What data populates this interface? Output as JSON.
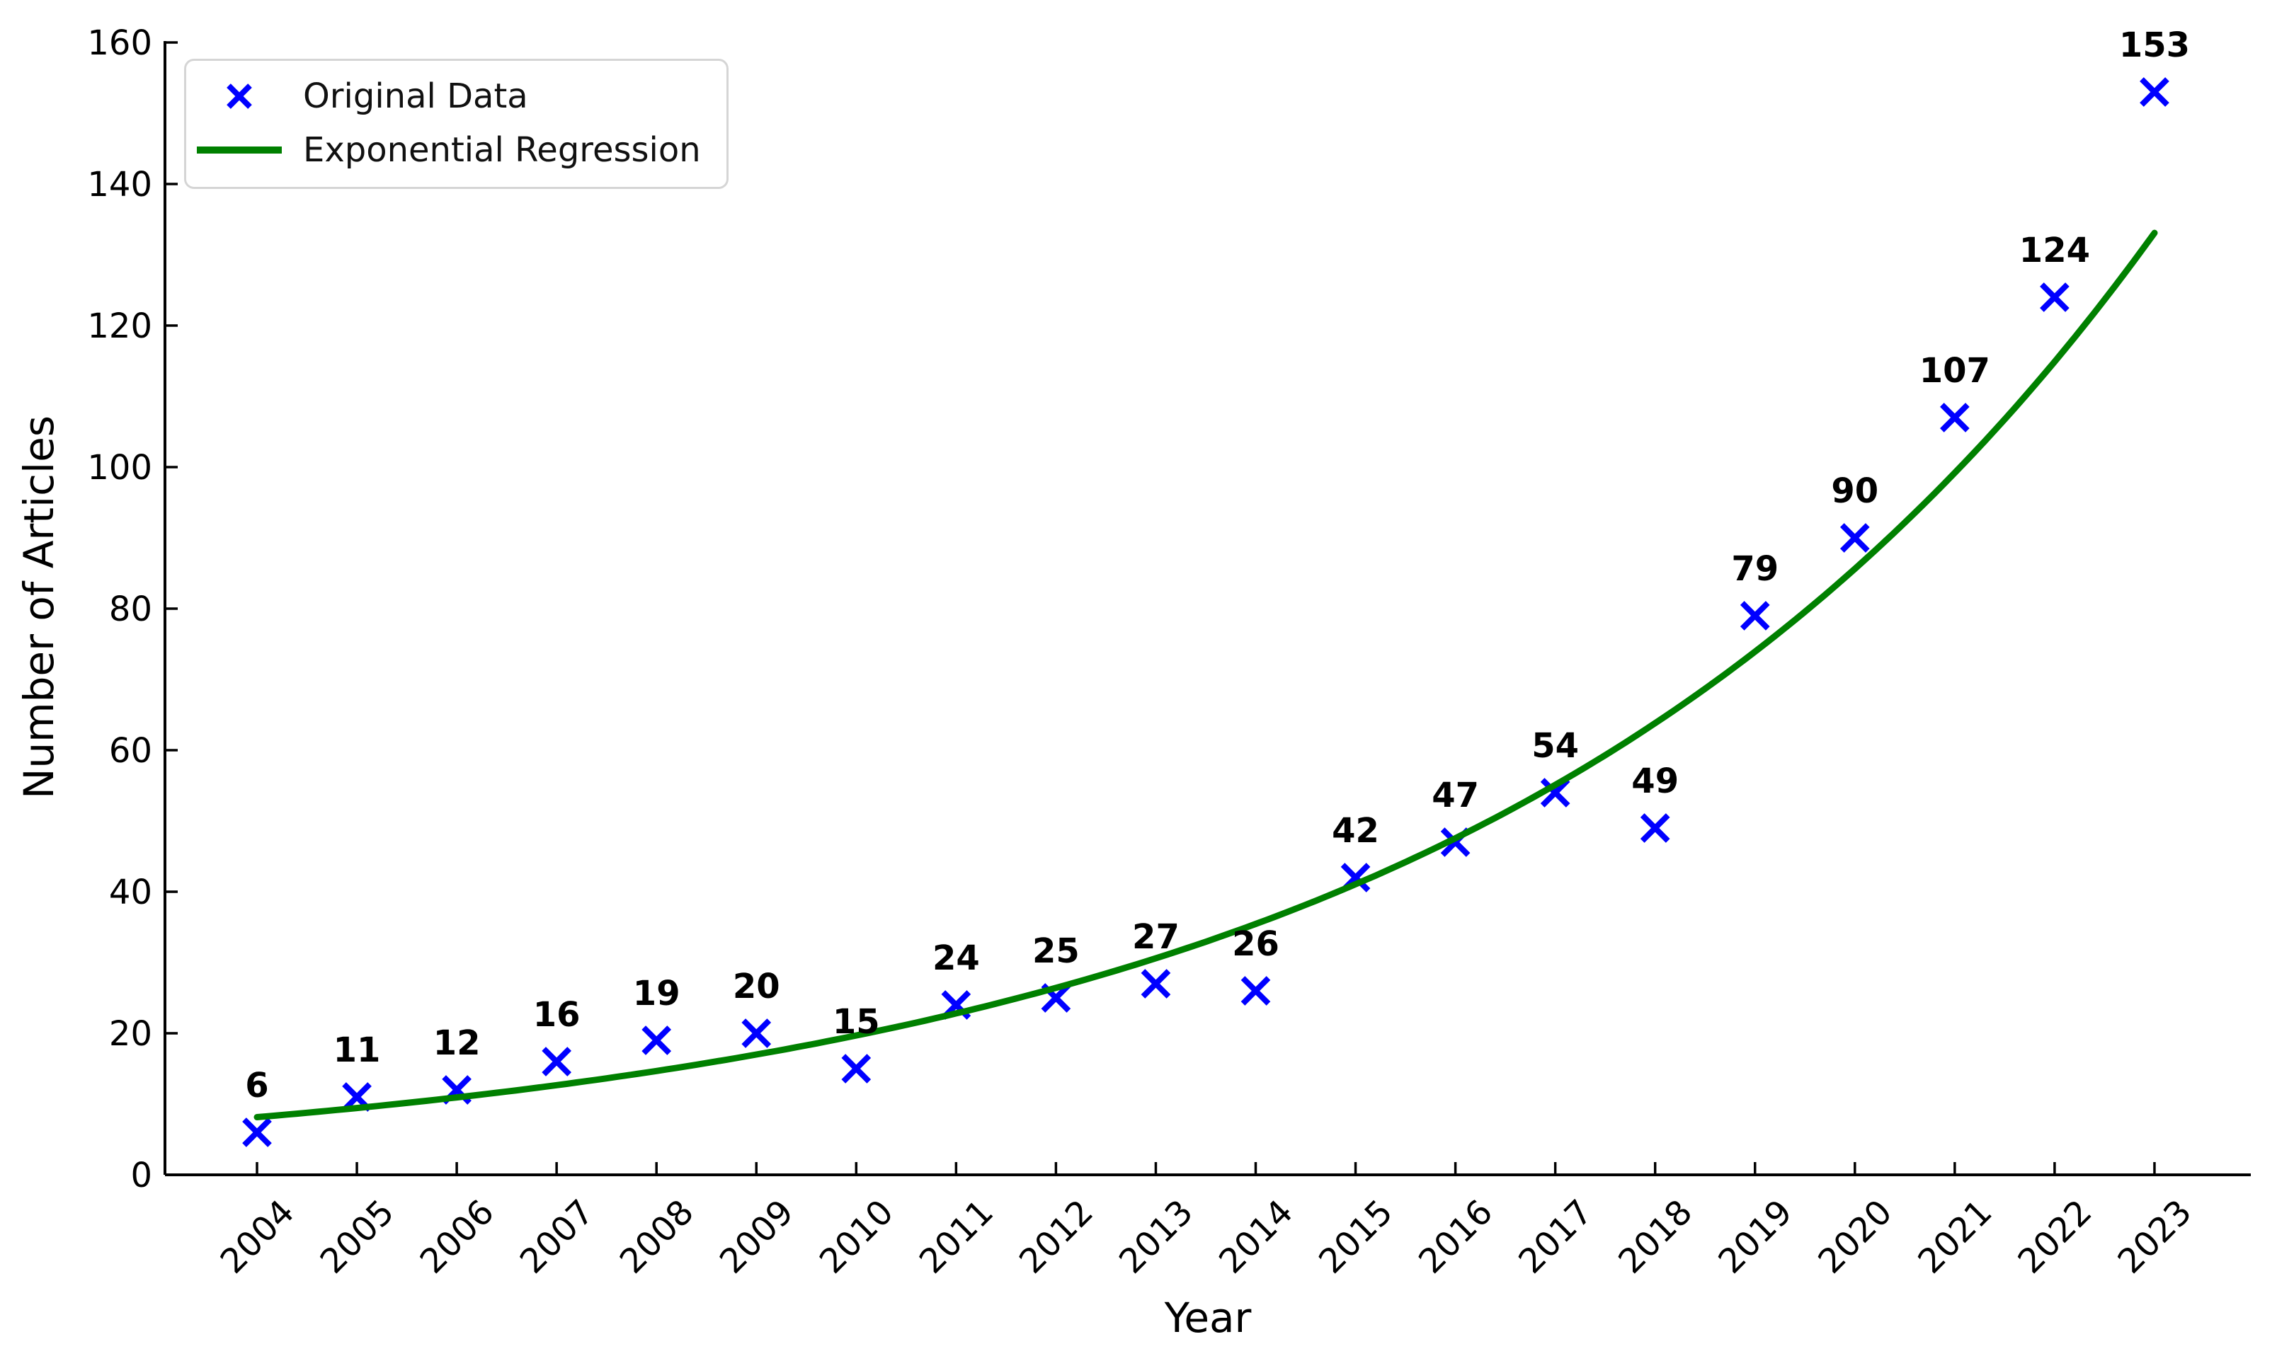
{
  "chart_data": {
    "type": "scatter",
    "title": "",
    "xlabel": "Year",
    "ylabel": "Number of Articles",
    "categories": [
      "2004",
      "2005",
      "2006",
      "2007",
      "2008",
      "2009",
      "2010",
      "2011",
      "2012",
      "2013",
      "2014",
      "2015",
      "2016",
      "2017",
      "2018",
      "2019",
      "2020",
      "2021",
      "2022",
      "2023"
    ],
    "series": [
      {
        "name": "Original Data",
        "type": "scatter",
        "marker": "x",
        "color": "#0000ff",
        "values": [
          6,
          11,
          12,
          16,
          19,
          20,
          15,
          24,
          25,
          27,
          26,
          42,
          47,
          54,
          49,
          79,
          90,
          107,
          124,
          153
        ],
        "point_labels_shown": true
      },
      {
        "name": "Exponential Regression",
        "type": "line",
        "color": "#008000",
        "regression": {
          "model": "exponential",
          "a": 8.15,
          "b": 0.147,
          "base_year": 2004
        }
      }
    ],
    "ylim": [
      0,
      160
    ],
    "yticks": [
      0,
      20,
      40,
      60,
      80,
      100,
      120,
      140,
      160
    ],
    "xlim": [
      2003.1,
      2023.96
    ],
    "x_tick_rotation": 45,
    "grid": false,
    "legend": {
      "position": "upper-left",
      "entries": [
        "Original Data",
        "Exponential Regression"
      ]
    },
    "colors": {
      "marker": "#0000ff",
      "regression_line": "#008000",
      "axis": "#000000",
      "text": "#000000",
      "legend_border": "#d5d5d5",
      "background": "#ffffff"
    }
  }
}
